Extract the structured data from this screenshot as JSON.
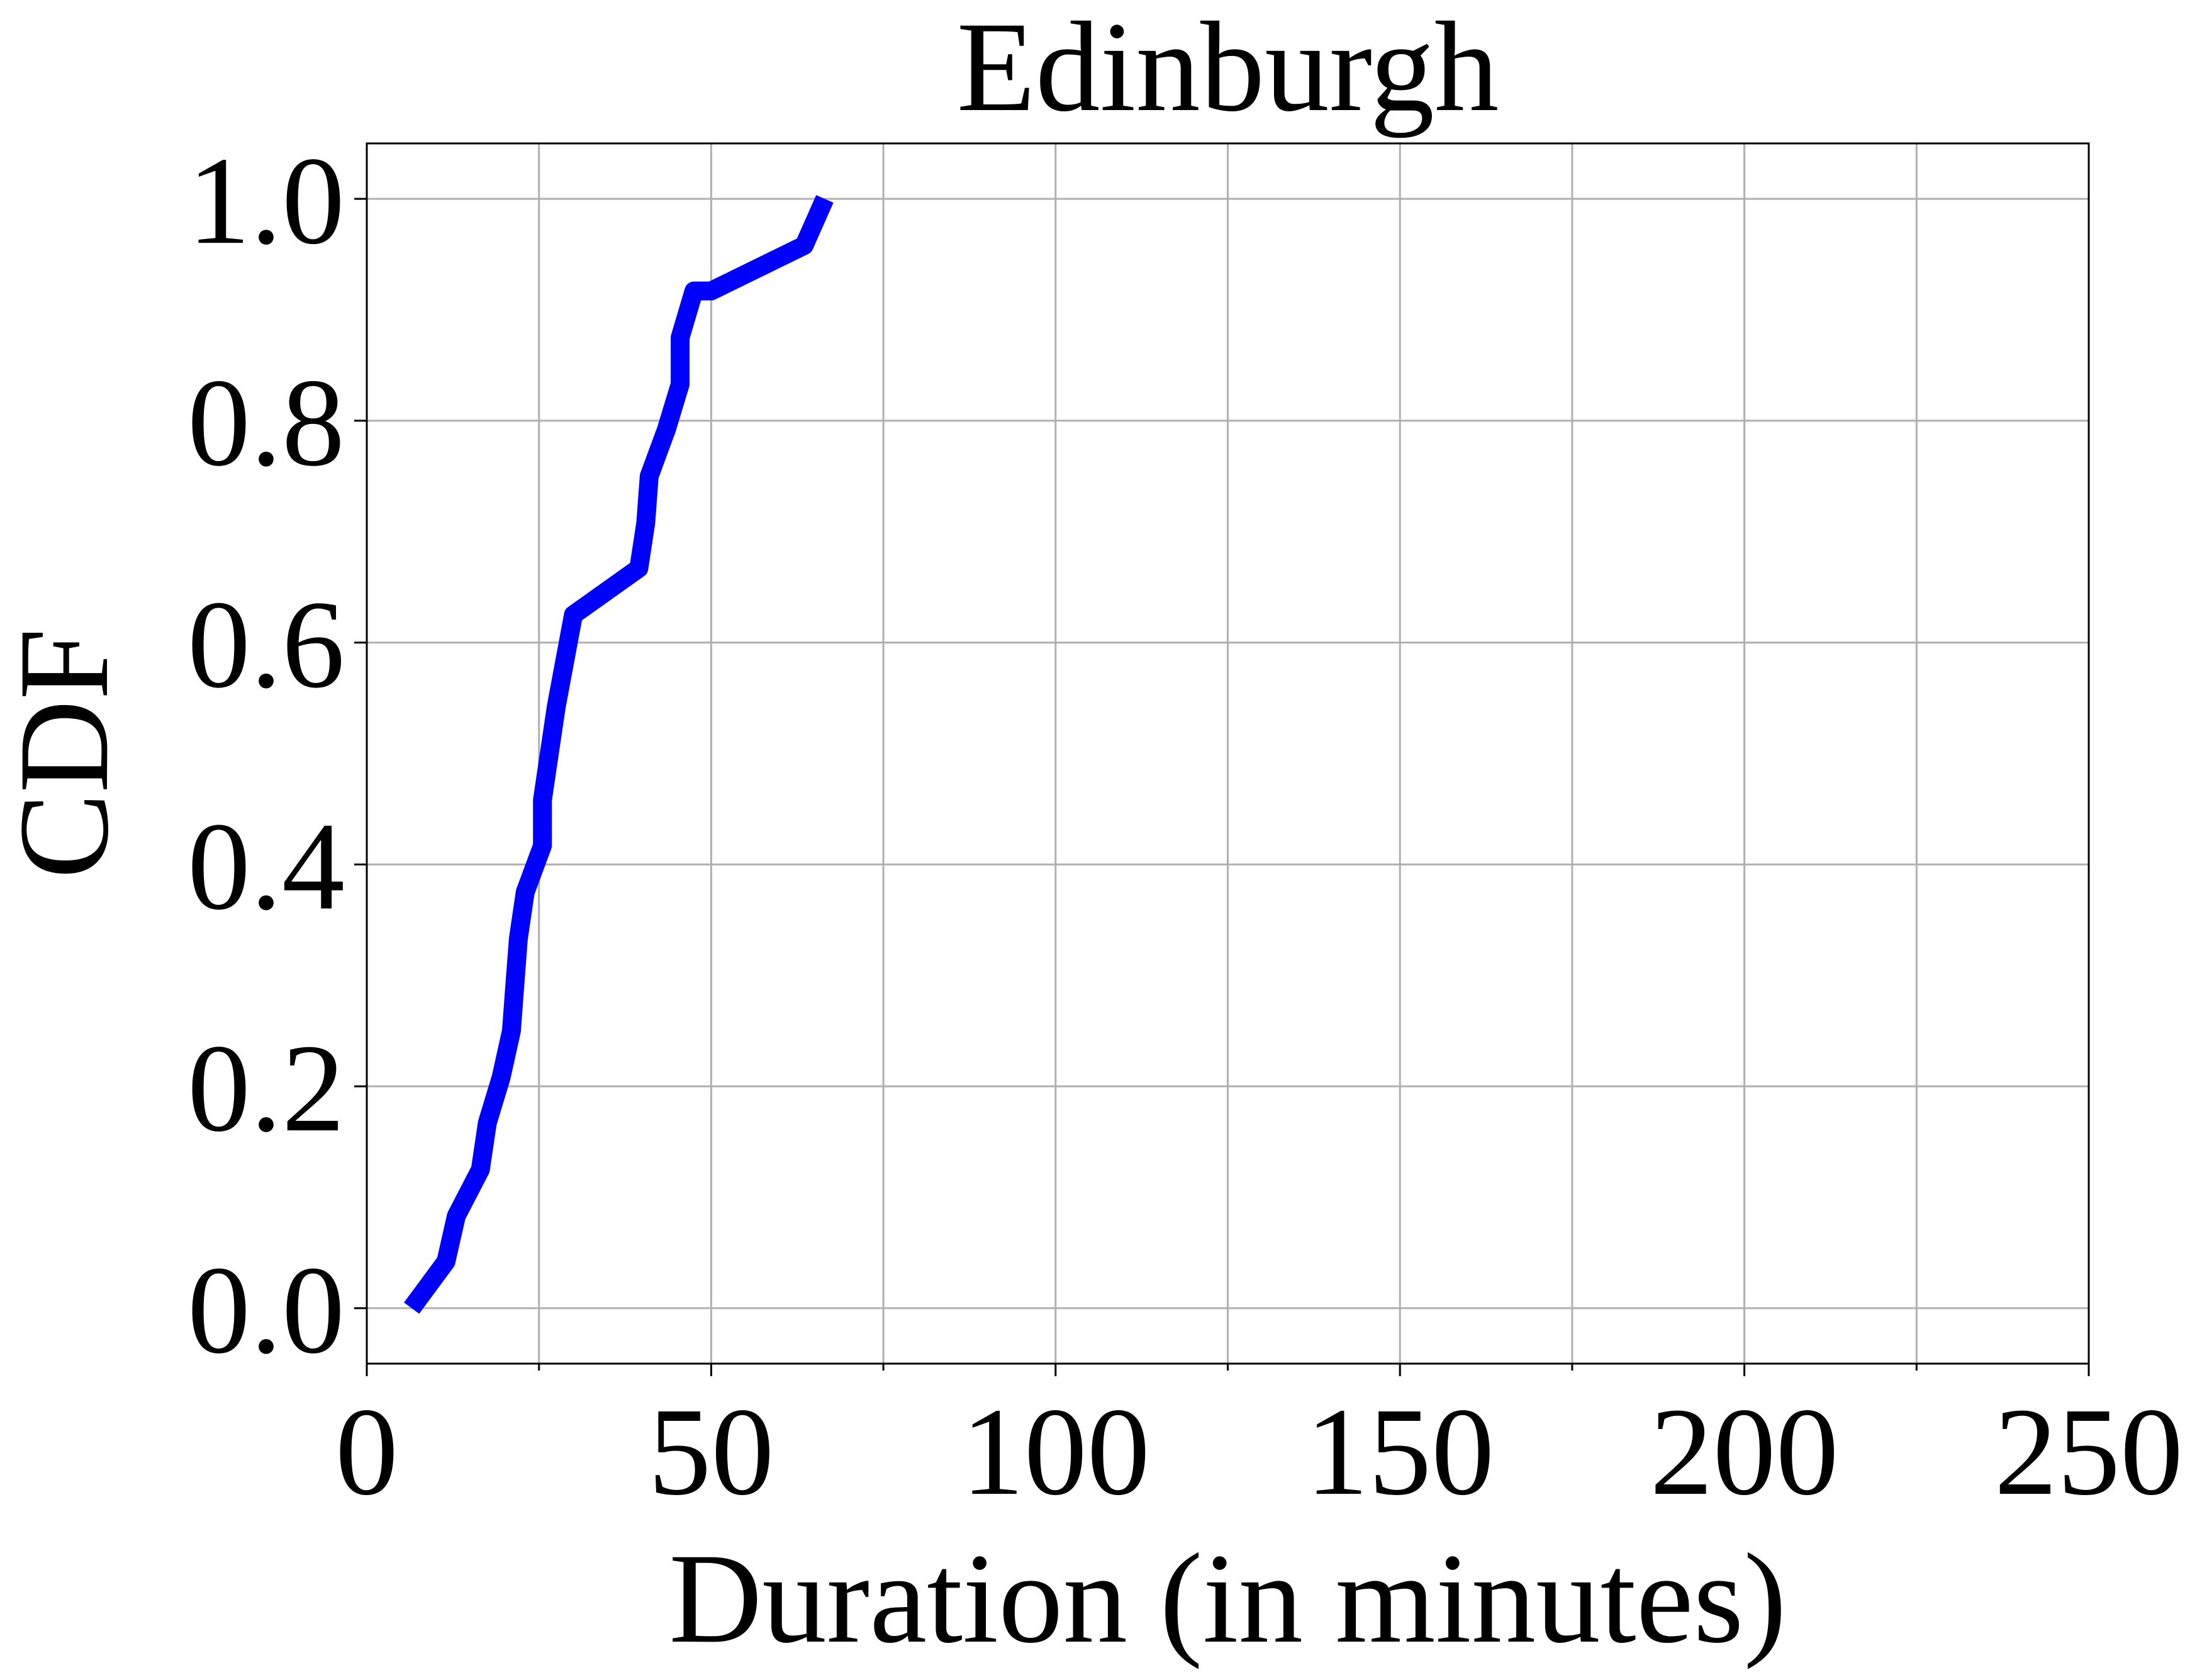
{
  "chart_data": {
    "type": "line",
    "title": "Edinburgh",
    "xlabel": "Duration (in minutes)",
    "ylabel": "CDF",
    "xlim": [
      0,
      250
    ],
    "ylim": [
      -0.05,
      1.05
    ],
    "xticks": [
      0,
      50,
      100,
      150,
      200,
      250
    ],
    "xtick_labels": [
      "0",
      "50",
      "100",
      "150",
      "200",
      "250"
    ],
    "yticks": [
      0.0,
      0.2,
      0.4,
      0.6,
      0.8,
      1.0
    ],
    "ytick_labels": [
      "0.0",
      "0.2",
      "0.4",
      "0.6",
      "0.8",
      "1.0"
    ],
    "x_minor_ticks": [
      25,
      75,
      125,
      175,
      225
    ],
    "grid": true,
    "legend": "none",
    "series": [
      {
        "color": "#0000ff",
        "x": [
          6.5,
          11.5,
          13.0,
          16.5,
          17.5,
          19.5,
          21.0,
          21.5,
          22.0,
          23.0,
          25.5,
          25.5,
          27.5,
          30.0,
          39.5,
          40.5,
          41.0,
          43.5,
          45.5,
          45.5,
          47.5,
          50.0,
          63.5,
          66.5
        ],
        "y": [
          0.0,
          0.042,
          0.083,
          0.125,
          0.167,
          0.208,
          0.25,
          0.292,
          0.333,
          0.375,
          0.417,
          0.458,
          0.542,
          0.625,
          0.667,
          0.708,
          0.75,
          0.792,
          0.833,
          0.875,
          0.917,
          0.917,
          0.958,
          1.0
        ]
      }
    ]
  }
}
